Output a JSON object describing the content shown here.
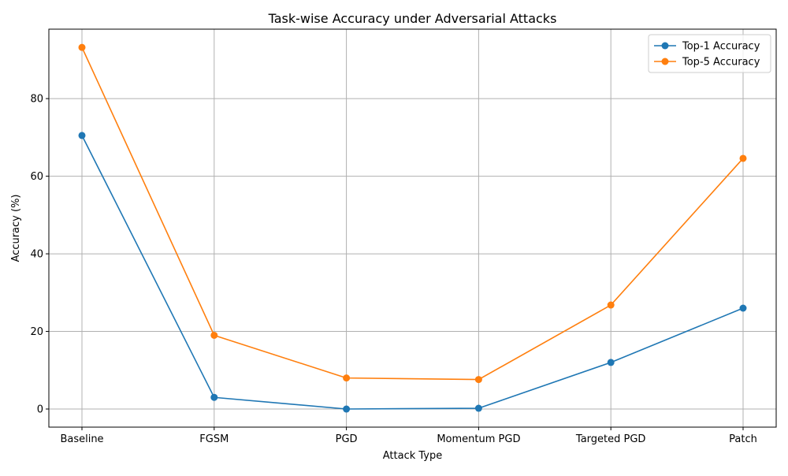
{
  "chart_data": {
    "type": "line",
    "title": "Task-wise Accuracy under Adversarial Attacks",
    "xlabel": "Attack Type",
    "ylabel": "Accuracy (%)",
    "categories": [
      "Baseline",
      "FGSM",
      "PGD",
      "Momentum PGD",
      "Targeted PGD",
      "Patch"
    ],
    "ylim": [
      -4.67,
      97.9
    ],
    "yticks": [
      0,
      20,
      40,
      60,
      80
    ],
    "grid": true,
    "legend_position": "top-right",
    "series": [
      {
        "name": "Top-1 Accuracy",
        "color": "#1f77b4",
        "marker": "circle",
        "values": [
          70.5,
          3.0,
          0.0,
          0.2,
          12.0,
          26.0
        ]
      },
      {
        "name": "Top-5 Accuracy",
        "color": "#ff7f0e",
        "marker": "circle",
        "values": [
          93.2,
          19.0,
          8.0,
          7.6,
          26.8,
          64.6
        ]
      }
    ]
  }
}
